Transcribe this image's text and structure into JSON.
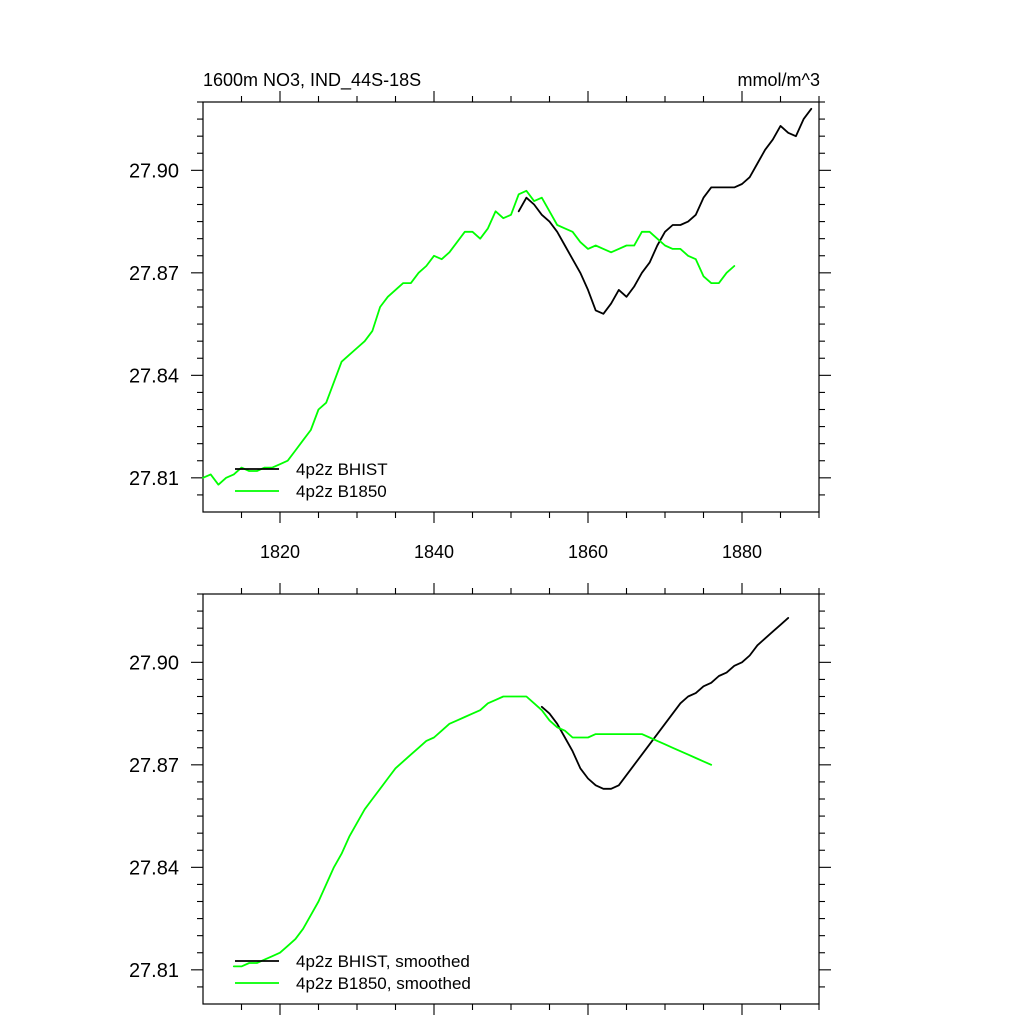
{
  "colors": {
    "bhist": "#000000",
    "b1850": "#00ff00",
    "frame": "#000000",
    "background": "#ffffff"
  },
  "chart_data": [
    {
      "type": "line",
      "title": "1600m NO3, IND_44S-18S",
      "units": "mmol/m^3",
      "xlim": [
        1810,
        1890
      ],
      "ylim": [
        27.8,
        27.92
      ],
      "x_ticks": [
        1820,
        1840,
        1860,
        1880
      ],
      "x_tick_labels": [
        "1820",
        "1840",
        "1860",
        "1880"
      ],
      "x_tick_labels_shown": true,
      "y_ticks": [
        27.81,
        27.84,
        27.87,
        27.9
      ],
      "y_tick_labels": [
        "27.81",
        "27.84",
        "27.87",
        "27.90"
      ],
      "legend": {
        "position": "bottom-left",
        "entries": [
          "4p2z BHIST",
          "4p2z B1850"
        ]
      },
      "series": [
        {
          "name": "4p2z BHIST",
          "color_key": "bhist",
          "x": [
            1851,
            1852,
            1853,
            1854,
            1855,
            1856,
            1857,
            1858,
            1859,
            1860,
            1861,
            1862,
            1863,
            1864,
            1865,
            1866,
            1867,
            1868,
            1869,
            1870,
            1871,
            1872,
            1873,
            1874,
            1875,
            1876,
            1877,
            1878,
            1879,
            1880,
            1881,
            1882,
            1883,
            1884,
            1885,
            1886,
            1887,
            1888,
            1889
          ],
          "y": [
            27.888,
            27.892,
            27.89,
            27.887,
            27.885,
            27.882,
            27.878,
            27.874,
            27.87,
            27.865,
            27.859,
            27.858,
            27.861,
            27.865,
            27.863,
            27.866,
            27.87,
            27.873,
            27.878,
            27.882,
            27.884,
            27.884,
            27.885,
            27.887,
            27.892,
            27.895,
            27.895,
            27.895,
            27.895,
            27.896,
            27.898,
            27.902,
            27.906,
            27.909,
            27.913,
            27.911,
            27.91,
            27.915,
            27.918
          ]
        },
        {
          "name": "4p2z B1850",
          "color_key": "b1850",
          "x": [
            1810,
            1811,
            1812,
            1813,
            1814,
            1815,
            1816,
            1817,
            1818,
            1819,
            1820,
            1821,
            1822,
            1823,
            1824,
            1825,
            1826,
            1827,
            1828,
            1829,
            1830,
            1831,
            1832,
            1833,
            1834,
            1835,
            1836,
            1837,
            1838,
            1839,
            1840,
            1841,
            1842,
            1843,
            1844,
            1845,
            1846,
            1847,
            1848,
            1849,
            1850,
            1851,
            1852,
            1853,
            1854,
            1855,
            1856,
            1857,
            1858,
            1859,
            1860,
            1861,
            1862,
            1863,
            1864,
            1865,
            1866,
            1867,
            1868,
            1869,
            1870,
            1871,
            1872,
            1873,
            1874,
            1875,
            1876,
            1877,
            1878,
            1879
          ],
          "y": [
            27.81,
            27.811,
            27.808,
            27.81,
            27.811,
            27.813,
            27.812,
            27.812,
            27.813,
            27.813,
            27.814,
            27.815,
            27.818,
            27.821,
            27.824,
            27.83,
            27.832,
            27.838,
            27.844,
            27.846,
            27.848,
            27.85,
            27.853,
            27.86,
            27.863,
            27.865,
            27.867,
            27.867,
            27.87,
            27.872,
            27.875,
            27.874,
            27.876,
            27.879,
            27.882,
            27.882,
            27.88,
            27.883,
            27.888,
            27.886,
            27.887,
            27.893,
            27.894,
            27.891,
            27.892,
            27.888,
            27.884,
            27.883,
            27.882,
            27.879,
            27.877,
            27.878,
            27.877,
            27.876,
            27.877,
            27.878,
            27.878,
            27.882,
            27.882,
            27.88,
            27.878,
            27.877,
            27.877,
            27.875,
            27.874,
            27.869,
            27.867,
            27.867,
            27.87,
            27.872
          ]
        }
      ]
    },
    {
      "type": "line",
      "title": "",
      "xlim": [
        1810,
        1890
      ],
      "ylim": [
        27.8,
        27.92
      ],
      "x_ticks": [
        1820,
        1840,
        1860,
        1880
      ],
      "x_tick_labels": [],
      "x_tick_labels_shown": false,
      "y_ticks": [
        27.81,
        27.84,
        27.87,
        27.9
      ],
      "y_tick_labels": [
        "27.81",
        "27.84",
        "27.87",
        "27.90"
      ],
      "legend": {
        "position": "bottom-left",
        "entries": [
          "4p2z BHIST, smoothed",
          "4p2z B1850, smoothed"
        ]
      },
      "series": [
        {
          "name": "4p2z BHIST, smoothed",
          "color_key": "bhist",
          "x": [
            1854,
            1855,
            1856,
            1857,
            1858,
            1859,
            1860,
            1861,
            1862,
            1863,
            1864,
            1865,
            1866,
            1867,
            1868,
            1869,
            1870,
            1871,
            1872,
            1873,
            1874,
            1875,
            1876,
            1877,
            1878,
            1879,
            1880,
            1881,
            1882,
            1883,
            1884,
            1885,
            1886
          ],
          "y": [
            27.887,
            27.885,
            27.882,
            27.878,
            27.874,
            27.869,
            27.866,
            27.864,
            27.863,
            27.863,
            27.864,
            27.867,
            27.87,
            27.873,
            27.876,
            27.879,
            27.882,
            27.885,
            27.888,
            27.89,
            27.891,
            27.893,
            27.894,
            27.896,
            27.897,
            27.899,
            27.9,
            27.902,
            27.905,
            27.907,
            27.909,
            27.911,
            27.913
          ]
        },
        {
          "name": "4p2z B1850, smoothed",
          "color_key": "b1850",
          "x": [
            1814,
            1815,
            1816,
            1817,
            1818,
            1819,
            1820,
            1821,
            1822,
            1823,
            1824,
            1825,
            1826,
            1827,
            1828,
            1829,
            1830,
            1831,
            1832,
            1833,
            1834,
            1835,
            1836,
            1837,
            1838,
            1839,
            1840,
            1841,
            1842,
            1843,
            1844,
            1845,
            1846,
            1847,
            1848,
            1849,
            1850,
            1851,
            1852,
            1853,
            1854,
            1855,
            1856,
            1857,
            1858,
            1859,
            1860,
            1861,
            1862,
            1863,
            1864,
            1865,
            1866,
            1867,
            1868,
            1869,
            1870,
            1871,
            1872,
            1873,
            1874,
            1875,
            1876
          ],
          "y": [
            27.811,
            27.811,
            27.812,
            27.812,
            27.813,
            27.814,
            27.815,
            27.817,
            27.819,
            27.822,
            27.826,
            27.83,
            27.835,
            27.84,
            27.844,
            27.849,
            27.853,
            27.857,
            27.86,
            27.863,
            27.866,
            27.869,
            27.871,
            27.873,
            27.875,
            27.877,
            27.878,
            27.88,
            27.882,
            27.883,
            27.884,
            27.885,
            27.886,
            27.888,
            27.889,
            27.89,
            27.89,
            27.89,
            27.89,
            27.888,
            27.886,
            27.883,
            27.881,
            27.88,
            27.878,
            27.878,
            27.878,
            27.879,
            27.879,
            27.879,
            27.879,
            27.879,
            27.879,
            27.879,
            27.878,
            27.877,
            27.876,
            27.875,
            27.874,
            27.873,
            27.872,
            27.871,
            27.87
          ]
        }
      ]
    }
  ]
}
